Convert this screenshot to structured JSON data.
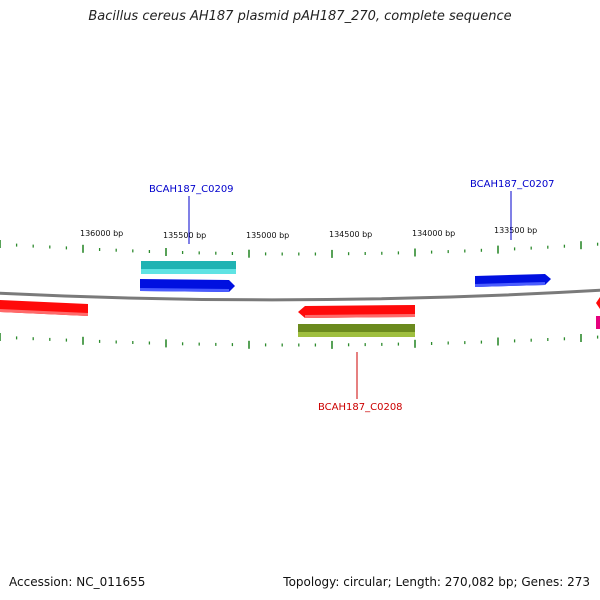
{
  "title": "Bacillus cereus AH187 plasmid pAH187_270, complete sequence",
  "footer": {
    "accession": "Accession: NC_011655",
    "summary": "Topology: circular; Length: 270,082 bp; Genes: 273"
  },
  "ruler": {
    "labels": [
      "136000 bp",
      "135500 bp",
      "135000 bp",
      "134500 bp",
      "134000 bp",
      "133500 bp"
    ]
  },
  "genes": [
    {
      "id": "BCAH187_C0209",
      "color": "#0000cc",
      "strand": "forward"
    },
    {
      "id": "BCAH187_C0207",
      "color": "#0000cc",
      "strand": "forward"
    },
    {
      "id": "BCAH187_C0208",
      "color": "#cc0000",
      "strand": "reverse"
    }
  ],
  "colors": {
    "backbone": "#888888",
    "ticks": "#2e8b2e",
    "forward_gene": "#0000ff",
    "reverse_gene": "#ff0000",
    "cds_cyan": "#22c8c8",
    "cds_olive": "#6b8e23",
    "edge_magenta": "#e6007e"
  }
}
